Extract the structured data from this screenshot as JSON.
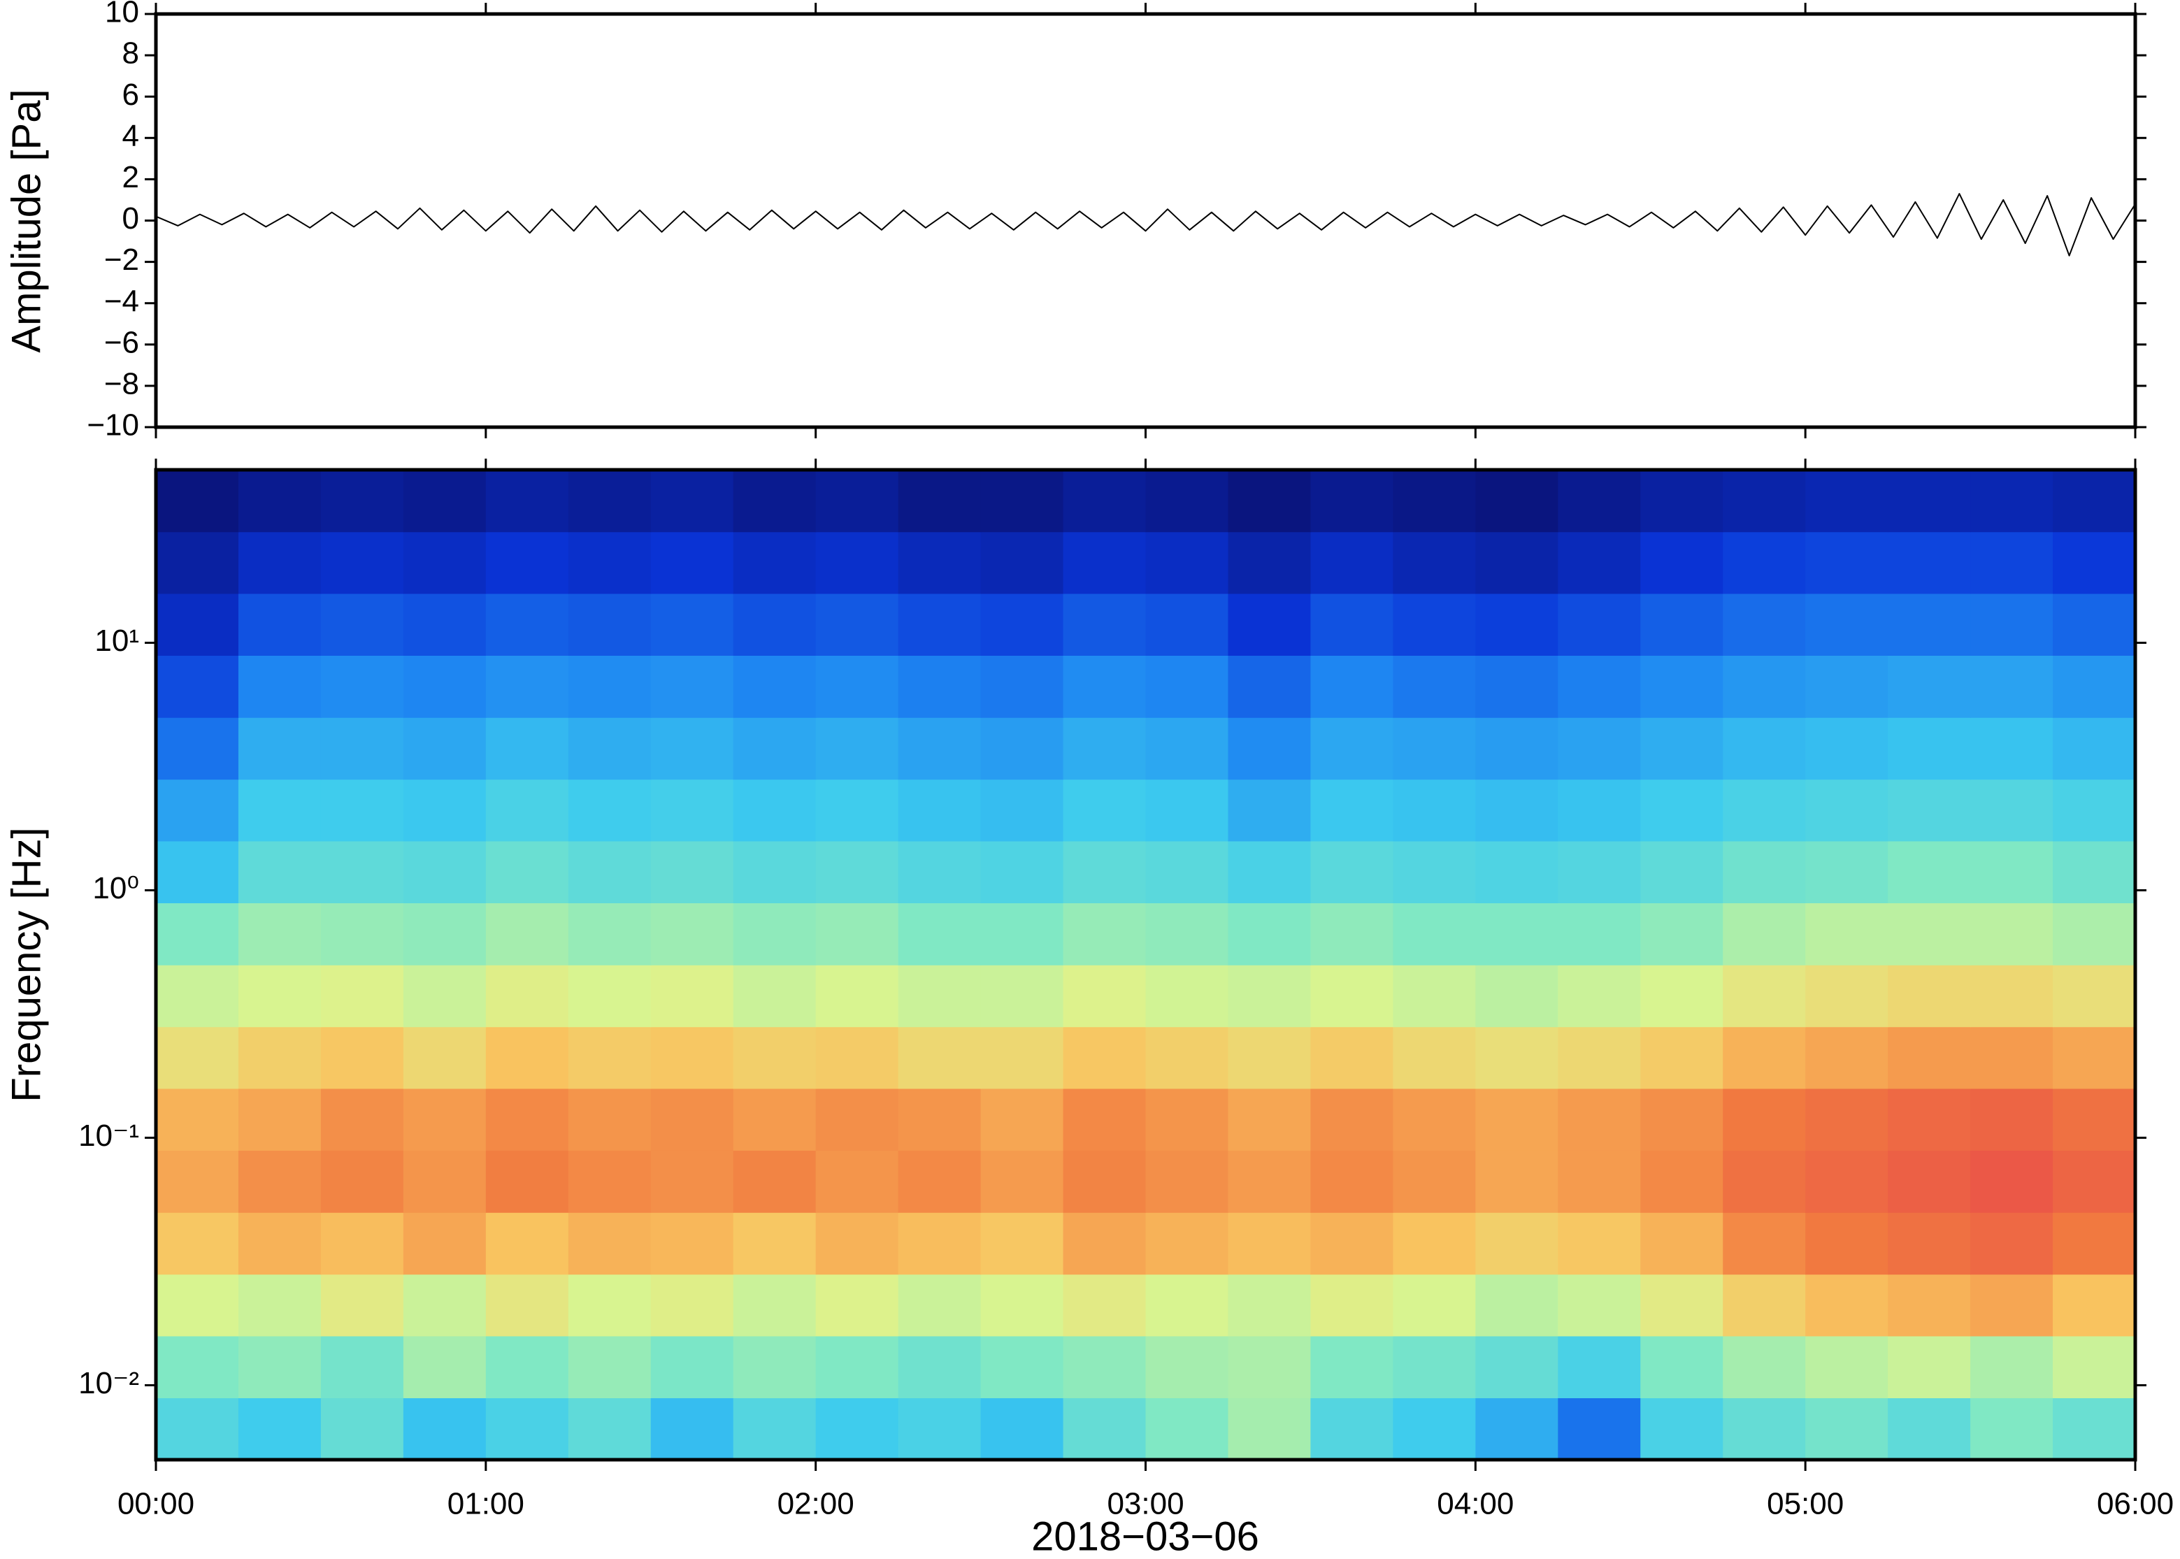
{
  "chart_data": [
    {
      "type": "line",
      "ylabel": "Amplitude [Pa]",
      "color": "#000000",
      "x": [
        "00:00",
        "00:04",
        "00:08",
        "00:12",
        "00:16",
        "00:20",
        "00:24",
        "00:28",
        "00:32",
        "00:36",
        "00:40",
        "00:44",
        "00:48",
        "00:52",
        "00:56",
        "01:00",
        "01:04",
        "01:08",
        "01:12",
        "01:16",
        "01:20",
        "01:24",
        "01:28",
        "01:32",
        "01:36",
        "01:40",
        "01:44",
        "01:48",
        "01:52",
        "01:56",
        "02:00",
        "02:04",
        "02:08",
        "02:12",
        "02:16",
        "02:20",
        "02:24",
        "02:28",
        "02:32",
        "02:36",
        "02:40",
        "02:44",
        "02:48",
        "02:52",
        "02:56",
        "03:00",
        "03:04",
        "03:08",
        "03:12",
        "03:16",
        "03:20",
        "03:24",
        "03:28",
        "03:32",
        "03:36",
        "03:40",
        "03:44",
        "03:48",
        "03:52",
        "03:56",
        "04:00",
        "04:04",
        "04:08",
        "04:12",
        "04:16",
        "04:20",
        "04:24",
        "04:28",
        "04:32",
        "04:36",
        "04:40",
        "04:44",
        "04:48",
        "04:52",
        "04:56",
        "05:00",
        "05:04",
        "05:08",
        "05:12",
        "05:16",
        "05:20",
        "05:24",
        "05:28",
        "05:32",
        "05:36",
        "05:40",
        "05:44",
        "05:48",
        "05:52",
        "05:56",
        "06:00"
      ],
      "values": [
        0.2,
        -0.25,
        0.3,
        -0.2,
        0.35,
        -0.3,
        0.3,
        -0.35,
        0.4,
        -0.3,
        0.45,
        -0.4,
        0.6,
        -0.45,
        0.5,
        -0.5,
        0.45,
        -0.6,
        0.55,
        -0.5,
        0.7,
        -0.5,
        0.5,
        -0.55,
        0.45,
        -0.5,
        0.4,
        -0.45,
        0.5,
        -0.4,
        0.45,
        -0.4,
        0.4,
        -0.45,
        0.5,
        -0.35,
        0.4,
        -0.4,
        0.35,
        -0.45,
        0.4,
        -0.4,
        0.45,
        -0.35,
        0.4,
        -0.5,
        0.55,
        -0.45,
        0.4,
        -0.5,
        0.45,
        -0.4,
        0.35,
        -0.45,
        0.4,
        -0.35,
        0.4,
        -0.3,
        0.35,
        -0.3,
        0.3,
        -0.25,
        0.3,
        -0.25,
        0.25,
        -0.2,
        0.3,
        -0.3,
        0.4,
        -0.35,
        0.45,
        -0.5,
        0.6,
        -0.55,
        0.65,
        -0.7,
        0.7,
        -0.6,
        0.75,
        -0.8,
        0.9,
        -0.85,
        1.3,
        -0.9,
        1.0,
        -1.1,
        1.2,
        -1.7,
        1.1,
        -0.9,
        0.8
      ],
      "xlim": [
        "00:00",
        "06:00"
      ],
      "xticks": [
        "00:00",
        "01:00",
        "02:00",
        "03:00",
        "04:00",
        "05:00",
        "06:00"
      ],
      "ylim": [
        -10,
        10
      ],
      "yticks": [
        {
          "value": -10,
          "label": "−10"
        },
        {
          "value": -8,
          "label": "−8"
        },
        {
          "value": -6,
          "label": "−6"
        },
        {
          "value": -4,
          "label": "−4"
        },
        {
          "value": -2,
          "label": "−2"
        },
        0,
        2,
        4,
        6,
        8,
        10
      ]
    },
    {
      "type": "heatmap",
      "ylabel": "Frequency [Hz]",
      "xlabel": "2018−03−06",
      "yscale": "log",
      "x": [
        "00:00",
        "00:15",
        "00:30",
        "00:45",
        "01:00",
        "01:15",
        "01:30",
        "01:45",
        "02:00",
        "02:15",
        "02:30",
        "02:45",
        "03:00",
        "03:15",
        "03:30",
        "03:45",
        "04:00",
        "04:15",
        "04:30",
        "04:45",
        "05:00",
        "05:15",
        "05:30",
        "05:45"
      ],
      "y": [
        0.00667,
        0.0119,
        0.0211,
        0.0375,
        0.0667,
        0.119,
        0.211,
        0.375,
        0.667,
        1.19,
        2.11,
        3.75,
        6.67,
        11.9,
        21.1,
        37.5
      ],
      "values": [
        [
          0.42,
          0.38,
          0.45,
          0.36,
          0.4,
          0.44,
          0.35,
          0.42,
          0.38,
          0.4,
          0.36,
          0.45,
          0.5,
          0.55,
          0.42,
          0.38,
          0.32,
          0.22,
          0.4,
          0.45,
          0.48,
          0.44,
          0.5,
          0.46
        ],
        [
          0.5,
          0.52,
          0.48,
          0.55,
          0.5,
          0.53,
          0.49,
          0.52,
          0.5,
          0.47,
          0.5,
          0.52,
          0.55,
          0.56,
          0.5,
          0.48,
          0.45,
          0.4,
          0.5,
          0.55,
          0.58,
          0.6,
          0.56,
          0.6
        ],
        [
          0.62,
          0.6,
          0.65,
          0.6,
          0.66,
          0.62,
          0.64,
          0.6,
          0.63,
          0.6,
          0.62,
          0.65,
          0.62,
          0.6,
          0.64,
          0.62,
          0.58,
          0.6,
          0.65,
          0.72,
          0.76,
          0.78,
          0.8,
          0.75
        ],
        [
          0.74,
          0.78,
          0.76,
          0.8,
          0.75,
          0.78,
          0.77,
          0.74,
          0.78,
          0.76,
          0.74,
          0.8,
          0.78,
          0.76,
          0.78,
          0.75,
          0.72,
          0.74,
          0.78,
          0.85,
          0.88,
          0.9,
          0.92,
          0.88
        ],
        [
          0.8,
          0.84,
          0.86,
          0.83,
          0.87,
          0.85,
          0.84,
          0.86,
          0.83,
          0.85,
          0.82,
          0.86,
          0.84,
          0.82,
          0.85,
          0.83,
          0.8,
          0.82,
          0.85,
          0.9,
          0.92,
          0.94,
          0.96,
          0.93
        ],
        [
          0.78,
          0.8,
          0.84,
          0.82,
          0.85,
          0.83,
          0.84,
          0.82,
          0.84,
          0.83,
          0.8,
          0.85,
          0.83,
          0.8,
          0.84,
          0.82,
          0.8,
          0.82,
          0.84,
          0.88,
          0.9,
          0.92,
          0.93,
          0.9
        ],
        [
          0.68,
          0.72,
          0.74,
          0.7,
          0.75,
          0.73,
          0.74,
          0.72,
          0.73,
          0.7,
          0.7,
          0.74,
          0.72,
          0.7,
          0.73,
          0.7,
          0.68,
          0.7,
          0.73,
          0.78,
          0.8,
          0.82,
          0.82,
          0.8
        ],
        [
          0.6,
          0.62,
          0.63,
          0.6,
          0.64,
          0.62,
          0.63,
          0.6,
          0.62,
          0.6,
          0.6,
          0.63,
          0.61,
          0.6,
          0.62,
          0.6,
          0.58,
          0.6,
          0.62,
          0.66,
          0.68,
          0.7,
          0.7,
          0.68
        ],
        [
          0.5,
          0.54,
          0.53,
          0.52,
          0.55,
          0.53,
          0.54,
          0.52,
          0.53,
          0.5,
          0.5,
          0.53,
          0.52,
          0.5,
          0.52,
          0.5,
          0.5,
          0.5,
          0.52,
          0.56,
          0.58,
          0.58,
          0.58,
          0.56
        ],
        [
          0.36,
          0.44,
          0.44,
          0.43,
          0.46,
          0.44,
          0.45,
          0.43,
          0.44,
          0.42,
          0.41,
          0.44,
          0.43,
          0.4,
          0.43,
          0.42,
          0.41,
          0.42,
          0.44,
          0.47,
          0.48,
          0.5,
          0.5,
          0.47
        ],
        [
          0.3,
          0.38,
          0.38,
          0.37,
          0.4,
          0.38,
          0.39,
          0.37,
          0.38,
          0.36,
          0.35,
          0.38,
          0.37,
          0.32,
          0.37,
          0.36,
          0.35,
          0.36,
          0.38,
          0.4,
          0.41,
          0.42,
          0.42,
          0.4
        ],
        [
          0.22,
          0.32,
          0.32,
          0.31,
          0.34,
          0.32,
          0.33,
          0.31,
          0.32,
          0.3,
          0.29,
          0.32,
          0.31,
          0.26,
          0.31,
          0.3,
          0.29,
          0.3,
          0.32,
          0.34,
          0.35,
          0.36,
          0.36,
          0.34
        ],
        [
          0.16,
          0.25,
          0.26,
          0.25,
          0.27,
          0.26,
          0.27,
          0.25,
          0.26,
          0.24,
          0.23,
          0.26,
          0.25,
          0.2,
          0.25,
          0.23,
          0.22,
          0.24,
          0.26,
          0.28,
          0.29,
          0.3,
          0.3,
          0.28
        ],
        [
          0.1,
          0.17,
          0.18,
          0.17,
          0.19,
          0.18,
          0.19,
          0.17,
          0.18,
          0.16,
          0.15,
          0.18,
          0.17,
          0.12,
          0.17,
          0.15,
          0.14,
          0.16,
          0.19,
          0.21,
          0.22,
          0.22,
          0.22,
          0.2
        ],
        [
          0.06,
          0.1,
          0.11,
          0.1,
          0.12,
          0.11,
          0.12,
          0.1,
          0.11,
          0.09,
          0.08,
          0.11,
          0.1,
          0.07,
          0.1,
          0.08,
          0.07,
          0.09,
          0.12,
          0.14,
          0.15,
          0.15,
          0.15,
          0.13
        ],
        [
          0.02,
          0.04,
          0.05,
          0.04,
          0.06,
          0.05,
          0.06,
          0.04,
          0.05,
          0.03,
          0.03,
          0.05,
          0.04,
          0.02,
          0.04,
          0.03,
          0.02,
          0.04,
          0.06,
          0.07,
          0.08,
          0.08,
          0.08,
          0.07
        ]
      ],
      "zlim": [
        0,
        1
      ],
      "colormap": [
        "#0a0f6e",
        "#0a35d8",
        "#1e86f2",
        "#3ccbef",
        "#80e8c4",
        "#dcf48e",
        "#f9c35f",
        "#f17b40",
        "#e8484a"
      ],
      "xlim": [
        "00:00",
        "06:00"
      ],
      "xticks": [
        "00:00",
        "01:00",
        "02:00",
        "03:00",
        "04:00",
        "05:00",
        "06:00"
      ],
      "ylim": [
        0.005,
        50
      ],
      "yticks": [
        {
          "value": 0.01,
          "label": "10⁻²"
        },
        {
          "value": 0.1,
          "label": "10⁻¹"
        },
        {
          "value": 1,
          "label": "10⁰"
        },
        {
          "value": 10,
          "label": "10¹"
        }
      ]
    }
  ]
}
